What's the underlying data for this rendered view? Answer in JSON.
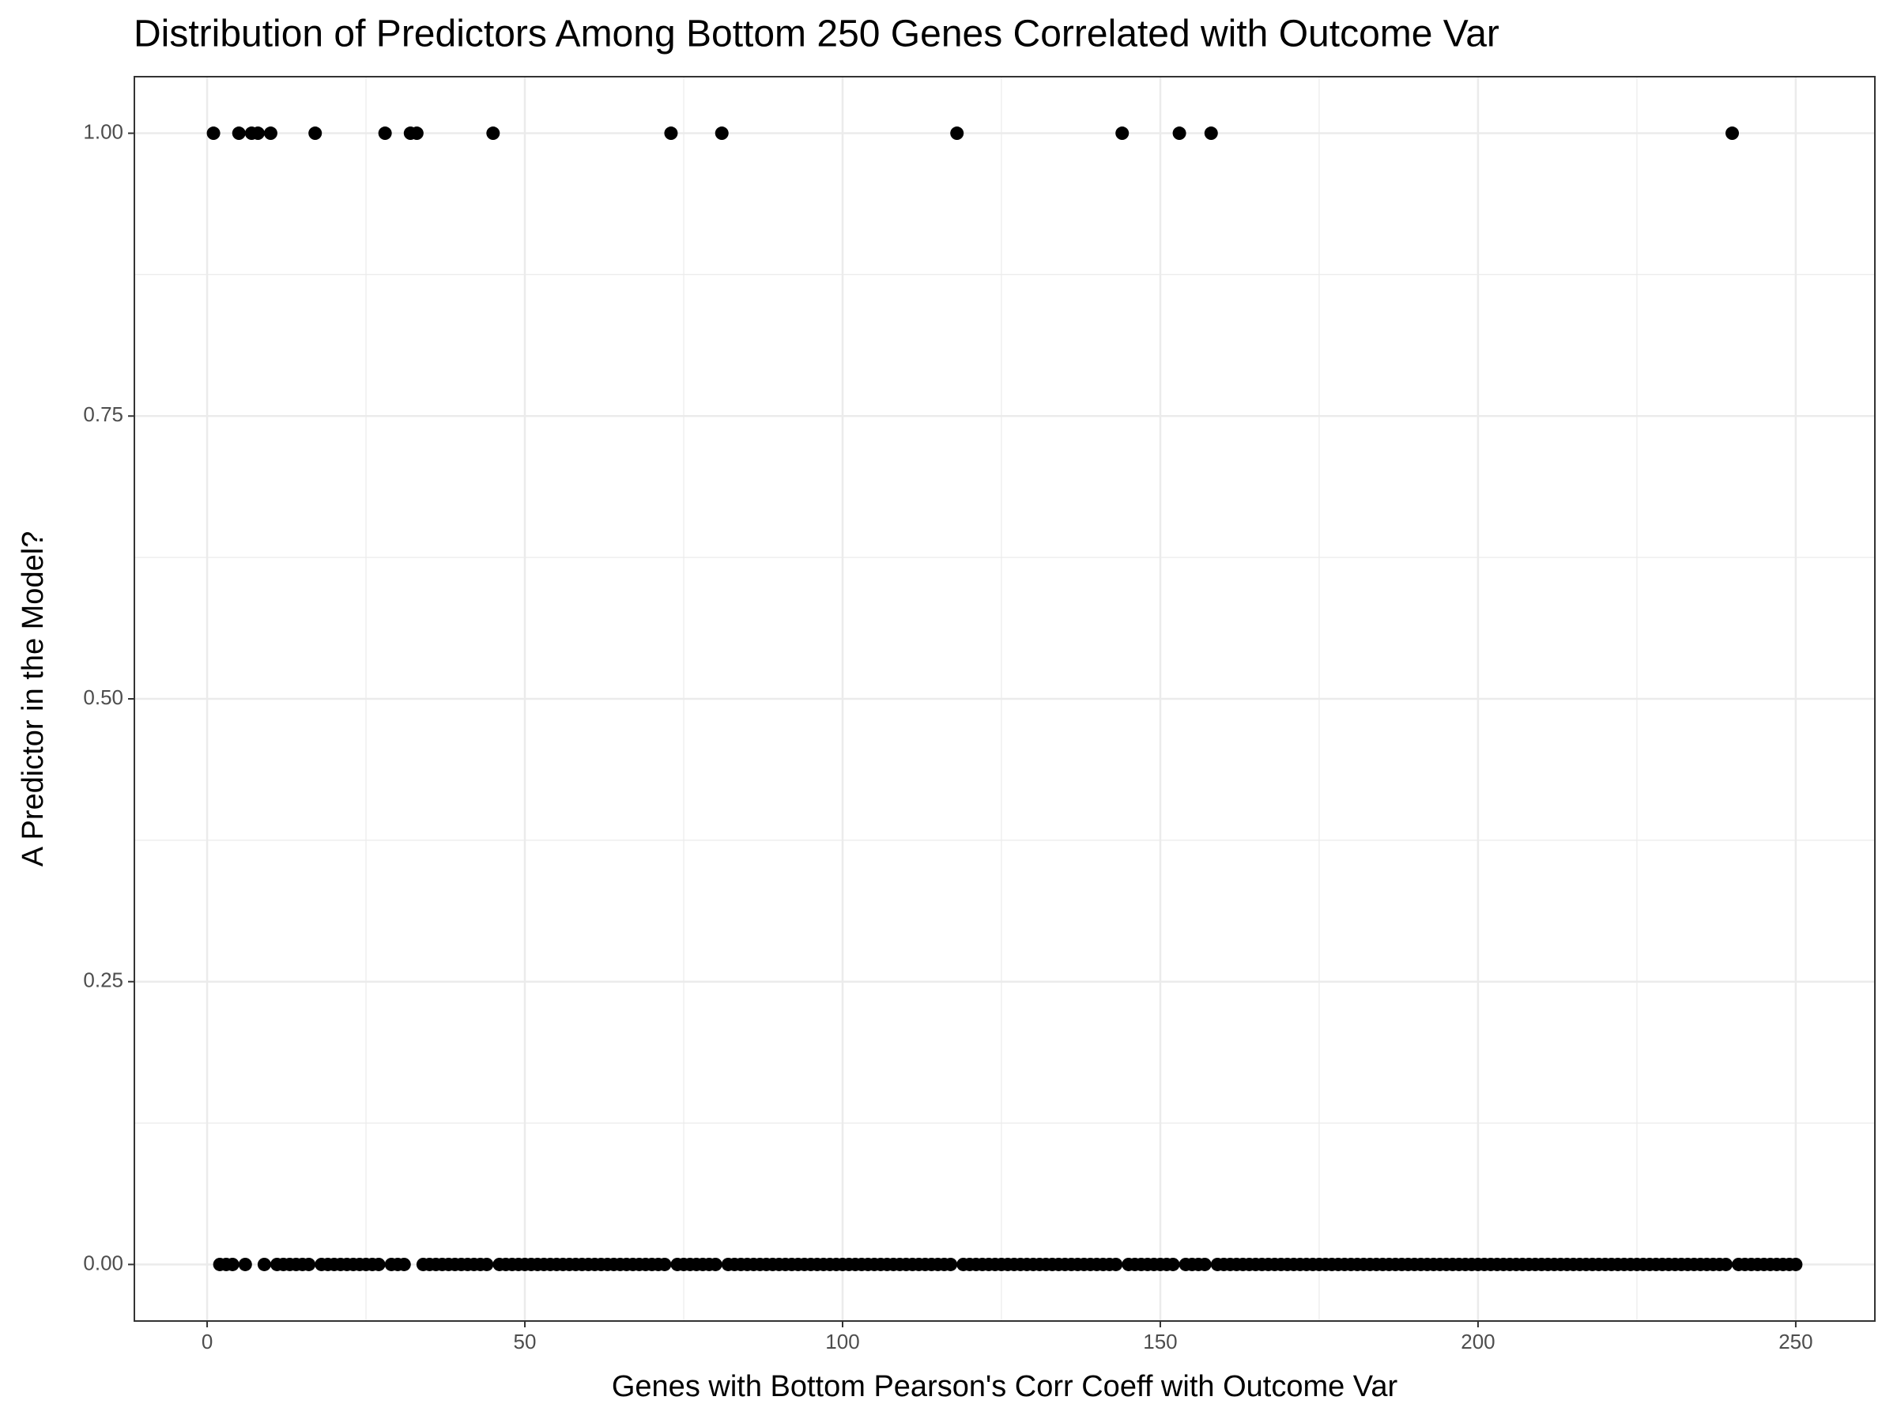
{
  "chart_data": {
    "type": "scatter",
    "title": "Distribution of Predictors Among Bottom 250 Genes Correlated with Outcome Var",
    "x_label": "Genes with Bottom Pearson's Corr Coeff with Outcome Var",
    "y_label": "A Predictor in the Model?",
    "color": "#000000",
    "grid": true,
    "xlim": [
      -11.45,
      262.45
    ],
    "ylim": [
      -0.05,
      1.05
    ],
    "xticks": [
      0,
      50,
      100,
      150,
      200,
      250
    ],
    "x_minor_ticks": [
      25,
      75,
      125,
      175,
      225
    ],
    "yticks": [
      {
        "value": 0,
        "label": "0.00"
      },
      {
        "value": 0.25,
        "label": "0.25"
      },
      {
        "value": 0.5,
        "label": "0.50"
      },
      {
        "value": 0.75,
        "label": "0.75"
      },
      {
        "value": 1,
        "label": "1.00"
      }
    ],
    "y_minor_ticks": [
      0.125,
      0.375,
      0.625,
      0.875
    ],
    "x": [
      1,
      2,
      3,
      4,
      5,
      6,
      7,
      8,
      9,
      10,
      11,
      12,
      13,
      14,
      15,
      16,
      17,
      18,
      19,
      20,
      21,
      22,
      23,
      24,
      25,
      26,
      27,
      28,
      29,
      30,
      31,
      32,
      33,
      34,
      35,
      36,
      37,
      38,
      39,
      40,
      41,
      42,
      43,
      44,
      45,
      46,
      47,
      48,
      49,
      50,
      51,
      52,
      53,
      54,
      55,
      56,
      57,
      58,
      59,
      60,
      61,
      62,
      63,
      64,
      65,
      66,
      67,
      68,
      69,
      70,
      71,
      72,
      73,
      74,
      75,
      76,
      77,
      78,
      79,
      80,
      81,
      82,
      83,
      84,
      85,
      86,
      87,
      88,
      89,
      90,
      91,
      92,
      93,
      94,
      95,
      96,
      97,
      98,
      99,
      100,
      101,
      102,
      103,
      104,
      105,
      106,
      107,
      108,
      109,
      110,
      111,
      112,
      113,
      114,
      115,
      116,
      117,
      118,
      119,
      120,
      121,
      122,
      123,
      124,
      125,
      126,
      127,
      128,
      129,
      130,
      131,
      132,
      133,
      134,
      135,
      136,
      137,
      138,
      139,
      140,
      141,
      142,
      143,
      144,
      145,
      146,
      147,
      148,
      149,
      150,
      151,
      152,
      153,
      154,
      155,
      156,
      157,
      158,
      159,
      160,
      161,
      162,
      163,
      164,
      165,
      166,
      167,
      168,
      169,
      170,
      171,
      172,
      173,
      174,
      175,
      176,
      177,
      178,
      179,
      180,
      181,
      182,
      183,
      184,
      185,
      186,
      187,
      188,
      189,
      190,
      191,
      192,
      193,
      194,
      195,
      196,
      197,
      198,
      199,
      200,
      201,
      202,
      203,
      204,
      205,
      206,
      207,
      208,
      209,
      210,
      211,
      212,
      213,
      214,
      215,
      216,
      217,
      218,
      219,
      220,
      221,
      222,
      223,
      224,
      225,
      226,
      227,
      228,
      229,
      230,
      231,
      232,
      233,
      234,
      235,
      236,
      237,
      238,
      239,
      240,
      241,
      242,
      243,
      244,
      245,
      246,
      247,
      248,
      249,
      250
    ],
    "values": [
      1,
      0,
      0,
      0,
      1,
      0,
      1,
      1,
      0,
      1,
      0,
      0,
      0,
      0,
      0,
      0,
      1,
      0,
      0,
      0,
      0,
      0,
      0,
      0,
      0,
      0,
      0,
      1,
      0,
      0,
      0,
      1,
      1,
      0,
      0,
      0,
      0,
      0,
      0,
      0,
      0,
      0,
      0,
      0,
      1,
      0,
      0,
      0,
      0,
      0,
      0,
      0,
      0,
      0,
      0,
      0,
      0,
      0,
      0,
      0,
      0,
      0,
      0,
      0,
      0,
      0,
      0,
      0,
      0,
      0,
      0,
      0,
      1,
      0,
      0,
      0,
      0,
      0,
      0,
      0,
      1,
      0,
      0,
      0,
      0,
      0,
      0,
      0,
      0,
      0,
      0,
      0,
      0,
      0,
      0,
      0,
      0,
      0,
      0,
      0,
      0,
      0,
      0,
      0,
      0,
      0,
      0,
      0,
      0,
      0,
      0,
      0,
      0,
      0,
      0,
      0,
      0,
      1,
      0,
      0,
      0,
      0,
      0,
      0,
      0,
      0,
      0,
      0,
      0,
      0,
      0,
      0,
      0,
      0,
      0,
      0,
      0,
      0,
      0,
      0,
      0,
      0,
      0,
      1,
      0,
      0,
      0,
      0,
      0,
      0,
      0,
      0,
      1,
      0,
      0,
      0,
      0,
      1,
      0,
      0,
      0,
      0,
      0,
      0,
      0,
      0,
      0,
      0,
      0,
      0,
      0,
      0,
      0,
      0,
      0,
      0,
      0,
      0,
      0,
      0,
      0,
      0,
      0,
      0,
      0,
      0,
      0,
      0,
      0,
      0,
      0,
      0,
      0,
      0,
      0,
      0,
      0,
      0,
      0,
      0,
      0,
      0,
      0,
      0,
      0,
      0,
      0,
      0,
      0,
      0,
      0,
      0,
      0,
      0,
      0,
      0,
      0,
      0,
      0,
      0,
      0,
      0,
      0,
      0,
      0,
      0,
      0,
      0,
      0,
      0,
      0,
      0,
      0,
      0,
      0,
      0,
      0,
      0,
      0,
      1,
      0,
      0,
      0,
      0,
      0,
      0,
      0,
      0,
      0,
      0
    ]
  }
}
